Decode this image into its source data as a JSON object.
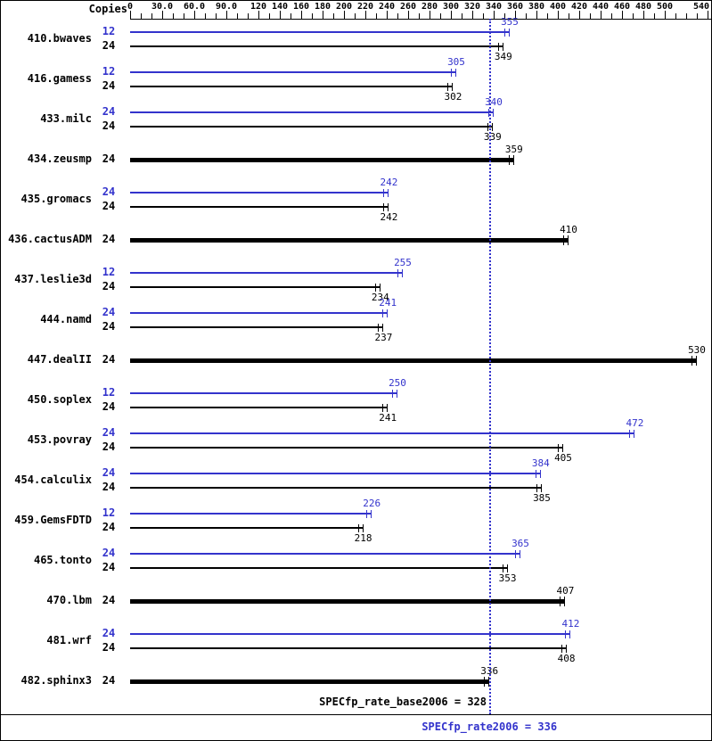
{
  "header": {
    "copies_label": "Copies"
  },
  "axis": {
    "minor_step": 10,
    "max": 540,
    "ticks": [
      {
        "v": 0,
        "label": "0"
      },
      {
        "v": 30,
        "label": "30.0"
      },
      {
        "v": 60,
        "label": "60.0"
      },
      {
        "v": 90,
        "label": "90.0"
      },
      {
        "v": 120,
        "label": "120"
      },
      {
        "v": 140,
        "label": "140"
      },
      {
        "v": 160,
        "label": "160"
      },
      {
        "v": 180,
        "label": "180"
      },
      {
        "v": 200,
        "label": "200"
      },
      {
        "v": 220,
        "label": "220"
      },
      {
        "v": 240,
        "label": "240"
      },
      {
        "v": 260,
        "label": "260"
      },
      {
        "v": 280,
        "label": "280"
      },
      {
        "v": 300,
        "label": "300"
      },
      {
        "v": 320,
        "label": "320"
      },
      {
        "v": 340,
        "label": "340"
      },
      {
        "v": 360,
        "label": "360"
      },
      {
        "v": 380,
        "label": "380"
      },
      {
        "v": 400,
        "label": "400"
      },
      {
        "v": 420,
        "label": "420"
      },
      {
        "v": 440,
        "label": "440"
      },
      {
        "v": 460,
        "label": "460"
      },
      {
        "v": 480,
        "label": "480"
      },
      {
        "v": 500,
        "label": "500"
      },
      {
        "v": 540,
        "label": "540"
      }
    ]
  },
  "colors": {
    "peak": "#3333cc",
    "base": "#000000"
  },
  "footer": {
    "base_label": "SPECfp_rate_base2006 = 328",
    "peak_label": "SPECfp_rate2006 = 336"
  },
  "chart_data": {
    "type": "bar",
    "orientation": "horizontal",
    "xlim": [
      0,
      540
    ],
    "legend": [
      {
        "series": "peak",
        "color": "#3333cc"
      },
      {
        "series": "base",
        "color": "#000000"
      }
    ],
    "base_score": 328,
    "peak_score": 336,
    "benchmarks": [
      {
        "name": "410.bwaves",
        "bars": [
          {
            "series": "peak",
            "copies": 12,
            "value": 355
          },
          {
            "series": "base",
            "copies": 24,
            "value": 349
          }
        ]
      },
      {
        "name": "416.gamess",
        "bars": [
          {
            "series": "peak",
            "copies": 12,
            "value": 305
          },
          {
            "series": "base",
            "copies": 24,
            "value": 302
          }
        ]
      },
      {
        "name": "433.milc",
        "bars": [
          {
            "series": "peak",
            "copies": 24,
            "value": 340
          },
          {
            "series": "base",
            "copies": 24,
            "value": 339
          }
        ]
      },
      {
        "name": "434.zeusmp",
        "bars": [
          {
            "series": "base",
            "copies": 24,
            "value": 359
          }
        ]
      },
      {
        "name": "435.gromacs",
        "bars": [
          {
            "series": "peak",
            "copies": 24,
            "value": 242
          },
          {
            "series": "base",
            "copies": 24,
            "value": 242
          }
        ]
      },
      {
        "name": "436.cactusADM",
        "bars": [
          {
            "series": "base",
            "copies": 24,
            "value": 410
          }
        ]
      },
      {
        "name": "437.leslie3d",
        "bars": [
          {
            "series": "peak",
            "copies": 12,
            "value": 255
          },
          {
            "series": "base",
            "copies": 24,
            "value": 234
          }
        ]
      },
      {
        "name": "444.namd",
        "bars": [
          {
            "series": "peak",
            "copies": 24,
            "value": 241
          },
          {
            "series": "base",
            "copies": 24,
            "value": 237
          }
        ]
      },
      {
        "name": "447.dealII",
        "bars": [
          {
            "series": "base",
            "copies": 24,
            "value": 530
          }
        ]
      },
      {
        "name": "450.soplex",
        "bars": [
          {
            "series": "peak",
            "copies": 12,
            "value": 250
          },
          {
            "series": "base",
            "copies": 24,
            "value": 241
          }
        ]
      },
      {
        "name": "453.povray",
        "bars": [
          {
            "series": "peak",
            "copies": 24,
            "value": 472
          },
          {
            "series": "base",
            "copies": 24,
            "value": 405
          }
        ]
      },
      {
        "name": "454.calculix",
        "bars": [
          {
            "series": "peak",
            "copies": 24,
            "value": 384
          },
          {
            "series": "base",
            "copies": 24,
            "value": 385
          }
        ]
      },
      {
        "name": "459.GemsFDTD",
        "bars": [
          {
            "series": "peak",
            "copies": 12,
            "value": 226
          },
          {
            "series": "base",
            "copies": 24,
            "value": 218
          }
        ]
      },
      {
        "name": "465.tonto",
        "bars": [
          {
            "series": "peak",
            "copies": 24,
            "value": 365
          },
          {
            "series": "base",
            "copies": 24,
            "value": 353
          }
        ]
      },
      {
        "name": "470.lbm",
        "bars": [
          {
            "series": "base",
            "copies": 24,
            "value": 407
          }
        ]
      },
      {
        "name": "481.wrf",
        "bars": [
          {
            "series": "peak",
            "copies": 24,
            "value": 412
          },
          {
            "series": "base",
            "copies": 24,
            "value": 408
          }
        ]
      },
      {
        "name": "482.sphinx3",
        "bars": [
          {
            "series": "base",
            "copies": 24,
            "value": 336
          }
        ]
      }
    ]
  }
}
